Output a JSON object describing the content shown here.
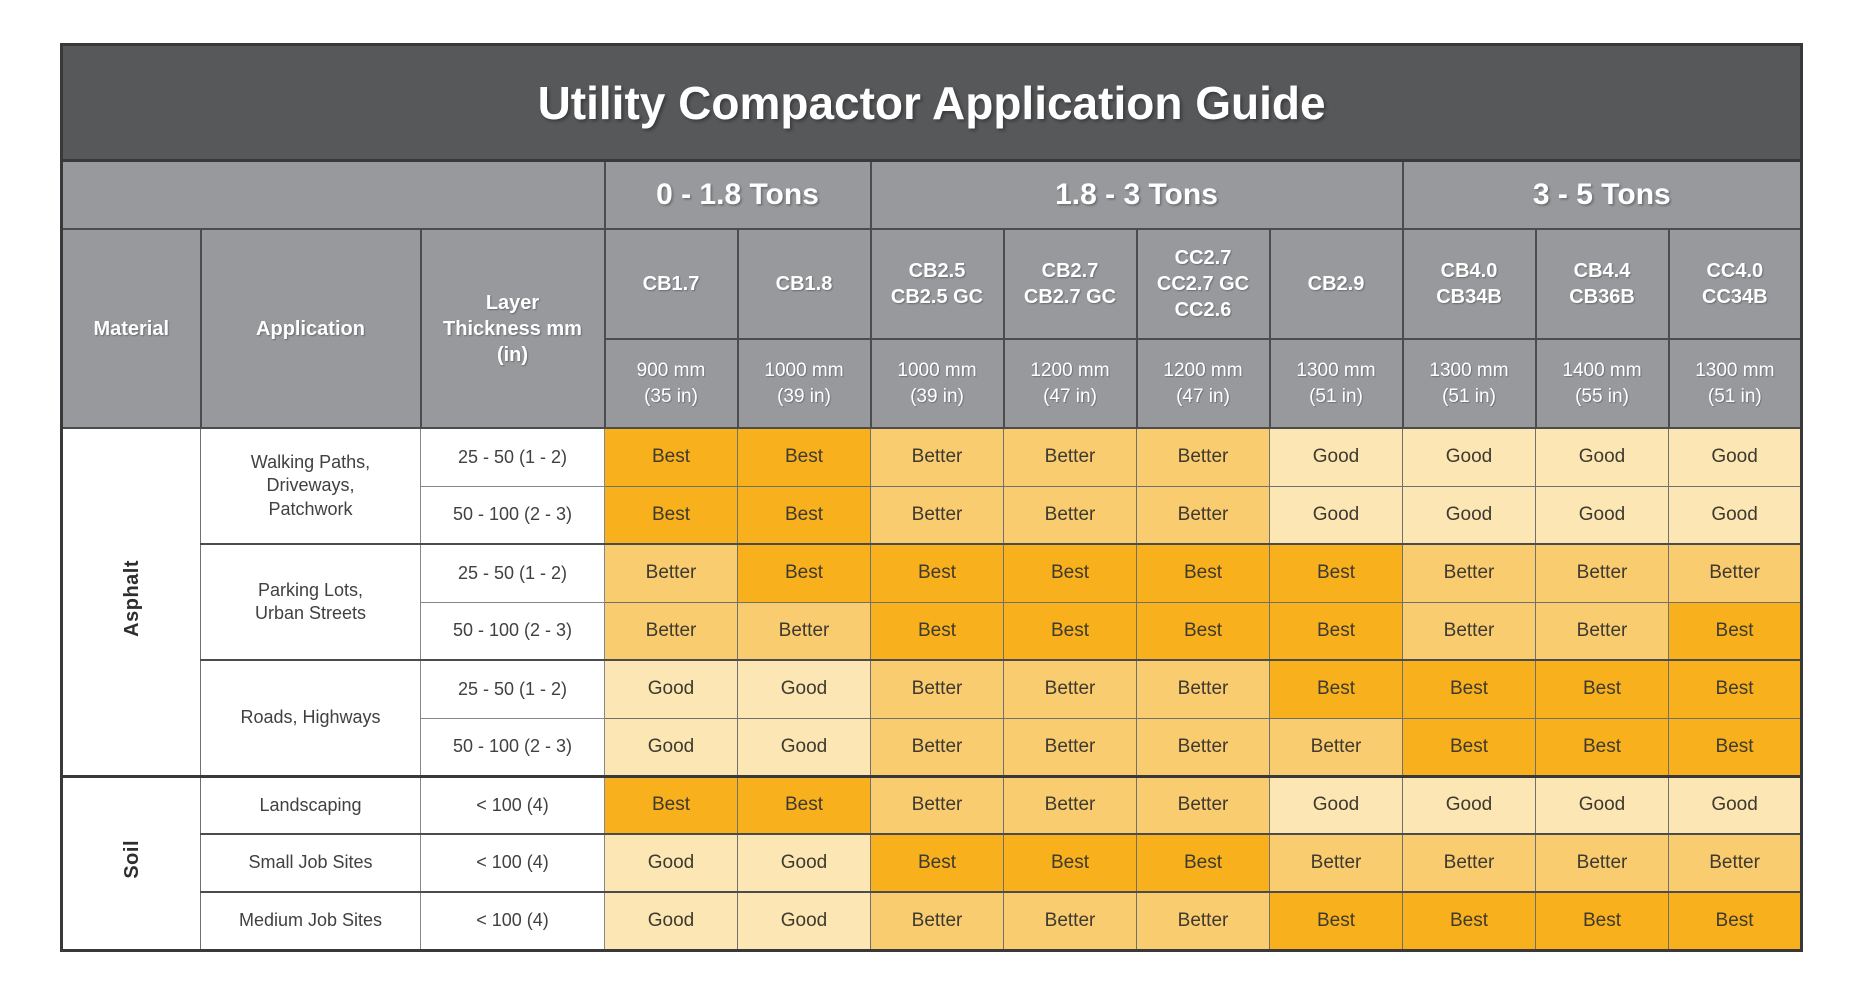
{
  "title": "Utility Compactor Application Guide",
  "colors": {
    "title_bar_bg": "#57585A",
    "header_bg": "#97999C",
    "header_text": "#FFFFFF"
  },
  "rating_styles": {
    "Best": {
      "bg": "#F8B11C"
    },
    "Better": {
      "bg": "#FACC70"
    },
    "Good": {
      "bg": "#FBE6B4"
    }
  },
  "left_headers": {
    "material": "Material",
    "application": "Application",
    "thickness": "Layer\nThickness mm\n(in)"
  },
  "tonnage_groups": [
    {
      "label": "0 - 1.8 Tons",
      "span": 2
    },
    {
      "label": "1.8 - 3 Tons",
      "span": 4
    },
    {
      "label": "3 - 5 Tons",
      "span": 3
    }
  ],
  "columns": [
    {
      "model": "CB1.7",
      "width": "900 mm\n(35 in)"
    },
    {
      "model": "CB1.8",
      "width": "1000 mm\n(39 in)"
    },
    {
      "model": "CB2.5\nCB2.5 GC",
      "width": "1000 mm\n(39 in)"
    },
    {
      "model": "CB2.7\nCB2.7 GC",
      "width": "1200 mm\n(47 in)"
    },
    {
      "model": "CC2.7\nCC2.7 GC\nCC2.6",
      "width": "1200 mm\n(47 in)"
    },
    {
      "model": "CB2.9",
      "width": "1300 mm\n(51 in)"
    },
    {
      "model": "CB4.0\nCB34B",
      "width": "1300 mm\n(51 in)"
    },
    {
      "model": "CB4.4\nCB36B",
      "width": "1400 mm\n(55 in)"
    },
    {
      "model": "CC4.0\nCC34B",
      "width": "1300 mm\n(51 in)"
    }
  ],
  "rows": [
    {
      "material": {
        "label": "Asphalt",
        "rowspan": 6
      },
      "application": {
        "label": "Walking Paths,\nDriveways,\nPatchwork",
        "rowspan": 2
      },
      "thickness": "25 - 50 (1 - 2)",
      "ratings": [
        "Best",
        "Best",
        "Better",
        "Better",
        "Better",
        "Good",
        "Good",
        "Good",
        "Good"
      ]
    },
    {
      "thickness": "50 - 100 (2 - 3)",
      "ratings": [
        "Best",
        "Best",
        "Better",
        "Better",
        "Better",
        "Good",
        "Good",
        "Good",
        "Good"
      ]
    },
    {
      "separator": "group",
      "application": {
        "label": "Parking Lots,\nUrban Streets",
        "rowspan": 2
      },
      "thickness": "25 - 50 (1 - 2)",
      "ratings": [
        "Better",
        "Best",
        "Best",
        "Best",
        "Best",
        "Best",
        "Better",
        "Better",
        "Better"
      ]
    },
    {
      "thickness": "50 - 100 (2 - 3)",
      "ratings": [
        "Better",
        "Better",
        "Best",
        "Best",
        "Best",
        "Best",
        "Better",
        "Better",
        "Best"
      ]
    },
    {
      "separator": "group",
      "application": {
        "label": "Roads, Highways",
        "rowspan": 2
      },
      "thickness": "25 - 50 (1 - 2)",
      "ratings": [
        "Good",
        "Good",
        "Better",
        "Better",
        "Better",
        "Best",
        "Best",
        "Best",
        "Best"
      ]
    },
    {
      "thickness": "50 - 100 (2 - 3)",
      "ratings": [
        "Good",
        "Good",
        "Better",
        "Better",
        "Better",
        "Better",
        "Best",
        "Best",
        "Best"
      ]
    },
    {
      "separator": "section",
      "material": {
        "label": "Soil",
        "rowspan": 3
      },
      "application": {
        "label": "Landscaping",
        "rowspan": 1
      },
      "thickness": "< 100 (4)",
      "ratings": [
        "Best",
        "Best",
        "Better",
        "Better",
        "Better",
        "Good",
        "Good",
        "Good",
        "Good"
      ]
    },
    {
      "separator": "group",
      "application": {
        "label": "Small Job Sites",
        "rowspan": 1
      },
      "thickness": "< 100 (4)",
      "ratings": [
        "Good",
        "Good",
        "Best",
        "Best",
        "Best",
        "Better",
        "Better",
        "Better",
        "Better"
      ]
    },
    {
      "separator": "group",
      "application": {
        "label": "Medium Job Sites",
        "rowspan": 1
      },
      "thickness": "< 100 (4)",
      "ratings": [
        "Good",
        "Good",
        "Better",
        "Better",
        "Better",
        "Best",
        "Best",
        "Best",
        "Best"
      ]
    }
  ]
}
